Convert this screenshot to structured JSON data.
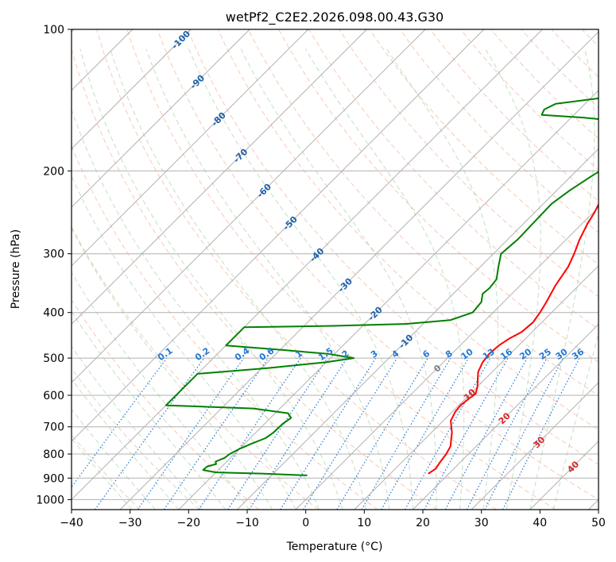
{
  "chart_data": {
    "type": "line",
    "title": "wetPf2_C2E2.2026.098.00.43.G30",
    "xlabel": "Temperature (°C)",
    "ylabel": "Pressure (hPa)",
    "xlim": [
      -40,
      50
    ],
    "ylim": [
      1050,
      100
    ],
    "y_scale": "log",
    "grid": true,
    "x_ticks": [
      -40,
      -30,
      -20,
      -10,
      0,
      10,
      20,
      30,
      40,
      50
    ],
    "y_ticks": [
      100,
      200,
      300,
      400,
      500,
      600,
      700,
      800,
      900,
      1000
    ],
    "isotherm_labels": [
      -100,
      -90,
      -80,
      -70,
      -60,
      -50,
      -40,
      -30,
      -20,
      -10,
      0,
      10,
      20,
      30,
      40
    ],
    "mixing_ratio_labels": [
      "0.1",
      "0.2",
      "0.4",
      "0.6",
      "1",
      "1.5",
      "2",
      "3",
      "4",
      "6",
      "8",
      "10",
      "13",
      "16",
      "20",
      "25",
      "30",
      "36"
    ],
    "colors": {
      "temperature": "#ff0000",
      "dewpoint": "#008000",
      "isotherm": "#b0b0b0",
      "dry_adiabat": "#f4a582",
      "moist_adiabat": "#99cc99",
      "mixing_ratio": "#1f77d4",
      "label_cold": "#1f5fa8",
      "label_zero": "#808080",
      "label_warm": "#d62728"
    },
    "series": [
      {
        "key": "temperature",
        "points": [
          [
            881,
            16.5
          ],
          [
            860,
            16.9
          ],
          [
            830,
            16.5
          ],
          [
            800,
            16.2
          ],
          [
            770,
            15.6
          ],
          [
            720,
            13.5
          ],
          [
            680,
            11.3
          ],
          [
            650,
            10.5
          ],
          [
            630,
            10.3
          ],
          [
            610,
            10.6
          ],
          [
            595,
            10.9
          ],
          [
            575,
            10.0
          ],
          [
            555,
            8.8
          ],
          [
            535,
            7.6
          ],
          [
            510,
            6.7
          ],
          [
            490,
            6.4
          ],
          [
            470,
            6.6
          ],
          [
            455,
            7.2
          ],
          [
            440,
            8.2
          ],
          [
            420,
            8.5
          ],
          [
            400,
            8.0
          ],
          [
            380,
            7.3
          ],
          [
            350,
            6.0
          ],
          [
            320,
            5.0
          ],
          [
            300,
            3.8
          ],
          [
            280,
            2.3
          ],
          [
            260,
            1.0
          ],
          [
            245,
            0.2
          ],
          [
            230,
            -0.9
          ],
          [
            215,
            -2.0
          ],
          [
            200,
            -3.0
          ],
          [
            190,
            -3.7
          ],
          [
            180,
            -4.0
          ],
          [
            172,
            -3.8
          ],
          [
            165,
            -2.8
          ],
          [
            158,
            -0.2
          ],
          [
            152,
            2.8
          ],
          [
            147,
            6.3
          ],
          [
            140,
            9.2
          ],
          [
            133,
            11.6
          ],
          [
            125,
            12.7
          ],
          [
            118,
            13.8
          ],
          [
            110,
            15.8
          ],
          [
            100,
            18.5
          ]
        ]
      },
      {
        "key": "dewpoint",
        "points": [
          [
            888,
            -3.9
          ],
          [
            880,
            -12.0
          ],
          [
            875,
            -20.0
          ],
          [
            865,
            -22.6
          ],
          [
            850,
            -22.5
          ],
          [
            840,
            -21.4
          ],
          [
            830,
            -21.9
          ],
          [
            815,
            -21.0
          ],
          [
            800,
            -20.8
          ],
          [
            780,
            -20.0
          ],
          [
            760,
            -18.8
          ],
          [
            740,
            -17.4
          ],
          [
            720,
            -17.0
          ],
          [
            690,
            -16.9
          ],
          [
            670,
            -16.5
          ],
          [
            655,
            -17.8
          ],
          [
            640,
            -24.5
          ],
          [
            630,
            -40.0
          ],
          [
            540,
            -40.0
          ],
          [
            525,
            -29.0
          ],
          [
            510,
            -20.0
          ],
          [
            500,
            -16.0
          ],
          [
            490,
            -21.0
          ],
          [
            480,
            -30.0
          ],
          [
            470,
            -40.0
          ],
          [
            430,
            -40.0
          ],
          [
            427,
            -25.0
          ],
          [
            423,
            -13.0
          ],
          [
            415,
            -6.0
          ],
          [
            400,
            -3.5
          ],
          [
            380,
            -3.8
          ],
          [
            365,
            -5.0
          ],
          [
            355,
            -4.8
          ],
          [
            340,
            -5.1
          ],
          [
            320,
            -6.9
          ],
          [
            300,
            -8.7
          ],
          [
            280,
            -8.3
          ],
          [
            265,
            -8.4
          ],
          [
            250,
            -8.5
          ],
          [
            235,
            -8.6
          ],
          [
            220,
            -7.8
          ],
          [
            205,
            -6.5
          ],
          [
            190,
            -4.8
          ],
          [
            180,
            -4.0
          ],
          [
            172,
            -4.3
          ],
          [
            165,
            -5.9
          ],
          [
            160,
            -9.0
          ],
          [
            156,
            -13.0
          ],
          [
            154,
            -18.0
          ],
          [
            152,
            -25.5
          ],
          [
            148,
            -26.0
          ],
          [
            144,
            -25.0
          ],
          [
            141,
            -20.0
          ],
          [
            138,
            -15.0
          ],
          [
            134,
            -10.0
          ],
          [
            128,
            -6.5
          ],
          [
            122,
            -4.5
          ],
          [
            115,
            -3.5
          ],
          [
            107,
            -2.0
          ],
          [
            100,
            0.0
          ]
        ]
      }
    ]
  }
}
